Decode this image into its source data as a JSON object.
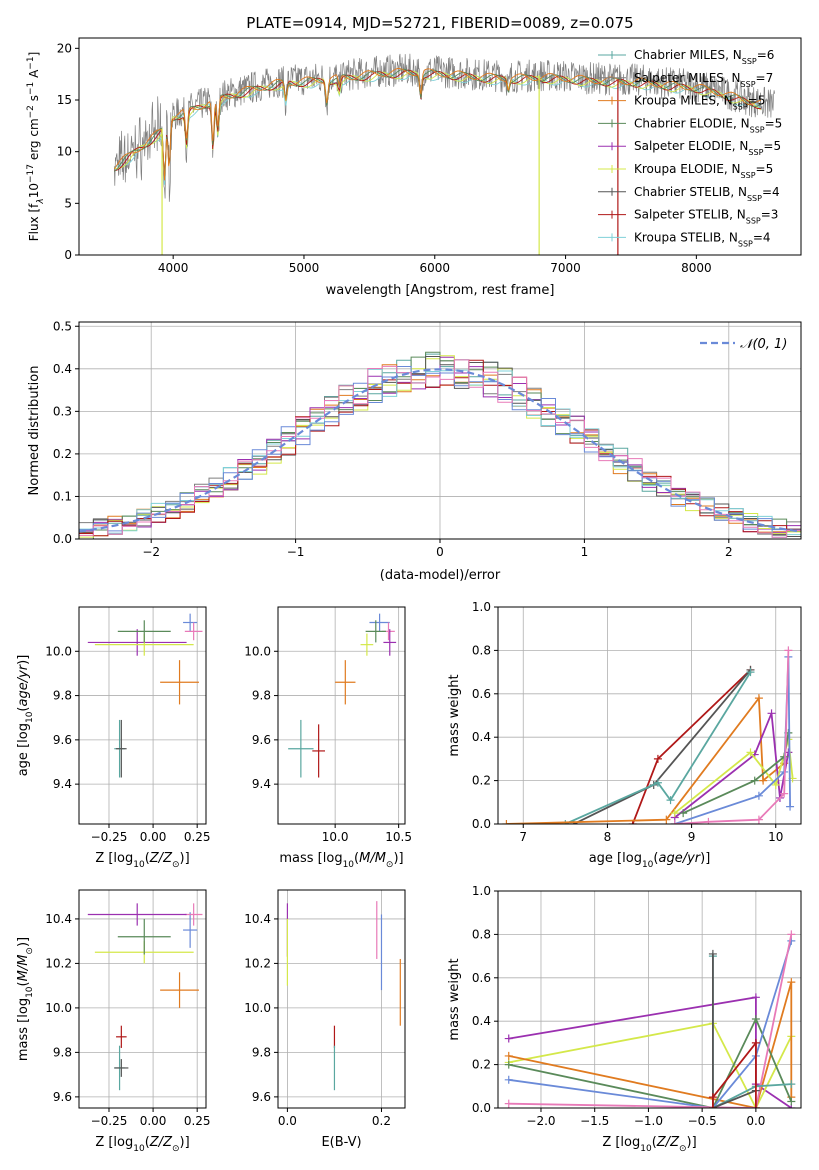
{
  "title": "PLATE=0914, MJD=52721, FIBERID=0089, z=0.075",
  "colors": {
    "chabrier_miles": "#5aa7a0",
    "salpeter_miles": "#7f7f7f",
    "kroupa_miles": "#e07b20",
    "chabrier_elodie": "#5a8a5a",
    "salpeter_elodie": "#9b30b0",
    "kroupa_elodie": "#d4e84a",
    "chabrier_stelib": "#555555",
    "salpeter_stelib": "#b01818",
    "kroupa_stelib": "#7fd0d8",
    "blue": "#6a8ad8",
    "pink": "#e87ab8",
    "grid": "#b0b0b0"
  },
  "chart_data": [
    {
      "type": "line",
      "id": "spectrum",
      "xlabel": "wavelength [Angstrom, rest frame]",
      "ylabel_parts": [
        "Flux [f",
        "λ",
        "10",
        "−17",
        " erg cm",
        "−2",
        " s",
        "−1",
        " A",
        "−1",
        "]"
      ],
      "xlim": [
        3280,
        8800
      ],
      "ylim": [
        0,
        21
      ],
      "xticks": [
        4000,
        5000,
        6000,
        7000,
        8000
      ],
      "yticks": [
        0,
        5,
        10,
        15,
        20
      ],
      "grid": false,
      "legend_position": "right",
      "legend": [
        {
          "name": "Chabrier MILES, N",
          "sub": "SSP",
          "suffix": "=6",
          "color": "chabrier_miles"
        },
        {
          "name": "Salpeter MILES, N",
          "sub": "SSP",
          "suffix": "=7",
          "color": "salpeter_miles"
        },
        {
          "name": "Kroupa MILES, N",
          "sub": "SSP",
          "suffix": "=5",
          "color": "kroupa_miles"
        },
        {
          "name": "Chabrier ELODIE, N",
          "sub": "SSP",
          "suffix": "=5",
          "color": "chabrier_elodie"
        },
        {
          "name": "Salpeter ELODIE, N",
          "sub": "SSP",
          "suffix": "=5",
          "color": "salpeter_elodie"
        },
        {
          "name": "Kroupa ELODIE, N",
          "sub": "SSP",
          "suffix": "=5",
          "color": "kroupa_elodie"
        },
        {
          "name": "Chabrier STELIB, N",
          "sub": "SSP",
          "suffix": "=4",
          "color": "chabrier_stelib"
        },
        {
          "name": "Salpeter STELIB, N",
          "sub": "SSP",
          "suffix": "=3",
          "color": "salpeter_stelib"
        },
        {
          "name": "Kroupa STELIB, N",
          "sub": "SSP",
          "suffix": "=4",
          "color": "kroupa_stelib"
        }
      ],
      "continuum": {
        "x": [
          3550,
          3700,
          3900,
          4000,
          4200,
          4400,
          4600,
          4800,
          5000,
          5200,
          5400,
          5600,
          5800,
          6000,
          6200,
          6400,
          6600,
          6800,
          7000,
          7200,
          7400,
          7600,
          7800,
          8000,
          8200,
          8400,
          8600
        ],
        "y": [
          8.5,
          10.0,
          12.0,
          13.5,
          14.5,
          15.5,
          16.2,
          16.8,
          17.0,
          17.2,
          17.5,
          17.8,
          17.9,
          17.8,
          17.6,
          17.4,
          17.3,
          17.4,
          17.3,
          17.1,
          17.0,
          16.9,
          16.6,
          16.4,
          15.8,
          15.0,
          14.5
        ]
      },
      "absorption_features": [
        {
          "x": 3934,
          "depth": 6.0
        },
        {
          "x": 3969,
          "depth": 5.0
        },
        {
          "x": 4102,
          "depth": 3.5
        },
        {
          "x": 4304,
          "depth": 5.0
        },
        {
          "x": 4341,
          "depth": 3.5
        },
        {
          "x": 4861,
          "depth": 2.0
        },
        {
          "x": 5175,
          "depth": 2.5
        },
        {
          "x": 5270,
          "depth": 1.2
        },
        {
          "x": 5893,
          "depth": 2.5
        },
        {
          "x": 6563,
          "depth": 1.2
        }
      ],
      "spikes": [
        {
          "x": 3915,
          "y": 0,
          "color": "kroupa_elodie"
        },
        {
          "x": 6798,
          "y": 0,
          "color": "kroupa_elodie"
        },
        {
          "x": 7400,
          "y": 0,
          "color": "salpeter_stelib"
        }
      ]
    },
    {
      "type": "line",
      "id": "residuals",
      "xlabel": "(data-model)/error",
      "ylabel": "Normed distribution",
      "xlim": [
        -2.5,
        2.5
      ],
      "ylim": [
        0,
        0.51
      ],
      "xticks": [
        -2,
        -1,
        0,
        1,
        2
      ],
      "yticks": [
        0.0,
        0.1,
        0.2,
        0.3,
        0.4,
        0.5
      ],
      "grid": true,
      "legend": [
        {
          "name": "𝒩(0, 1)",
          "style": "dashed",
          "color": "blue"
        }
      ],
      "bin_width": 0.1
    },
    {
      "type": "scatter",
      "id": "z_age",
      "xlabel_parts": [
        "Z [log",
        "10",
        "(",
        "Z/Z",
        "⊙",
        ")]"
      ],
      "ylabel_parts": [
        "age  [log",
        "10",
        "(",
        "age/yr",
        ")]"
      ],
      "xlim": [
        -0.42,
        0.3
      ],
      "ylim": [
        9.22,
        10.2
      ],
      "xticks": [
        -0.25,
        0.0,
        0.25
      ],
      "yticks": [
        9.4,
        9.6,
        9.8,
        10.0
      ],
      "grid": true,
      "points": [
        {
          "x": 0.21,
          "y": 10.13,
          "xerr": 0.04,
          "yerr": 0.04,
          "color": "blue"
        },
        {
          "x": 0.23,
          "y": 10.09,
          "xerr": 0.05,
          "yerr": 0.04,
          "color": "pink"
        },
        {
          "x": -0.09,
          "y": 10.04,
          "xerr": 0.28,
          "yerr": 0.06,
          "color": "salpeter_elodie"
        },
        {
          "x": -0.05,
          "y": 10.03,
          "xerr": 0.28,
          "yerr": 0.05,
          "color": "kroupa_elodie"
        },
        {
          "x": -0.05,
          "y": 10.09,
          "xerr": 0.15,
          "yerr": 0.05,
          "color": "chabrier_elodie"
        },
        {
          "x": 0.15,
          "y": 9.86,
          "xerr": 0.11,
          "yerr": 0.1,
          "color": "kroupa_miles"
        },
        {
          "x": -0.19,
          "y": 9.56,
          "xerr": 0.03,
          "yerr": 0.13,
          "color": "chabrier_miles"
        },
        {
          "x": -0.18,
          "y": 9.56,
          "xerr": 0.03,
          "yerr": 0.13,
          "color": "chabrier_stelib"
        }
      ]
    },
    {
      "type": "scatter",
      "id": "mass_age",
      "xlabel_parts": [
        "mass [log",
        "10",
        "(",
        "M/M",
        "⊙",
        ")]"
      ],
      "xlim": [
        9.55,
        10.55
      ],
      "ylim": [
        9.22,
        10.2
      ],
      "xticks": [
        10.0,
        10.5
      ],
      "yticks": [
        9.4,
        9.6,
        9.8,
        10.0
      ],
      "ytick_labels": [
        "9.4",
        "9.6",
        "9.8",
        "10.0"
      ],
      "grid": true,
      "points": [
        {
          "x": 10.35,
          "y": 10.13,
          "xerr": 0.08,
          "yerr": 0.04,
          "color": "blue"
        },
        {
          "x": 10.42,
          "y": 10.09,
          "xerr": 0.05,
          "yerr": 0.04,
          "color": "pink"
        },
        {
          "x": 10.43,
          "y": 10.04,
          "xerr": 0.05,
          "yerr": 0.06,
          "color": "salpeter_elodie"
        },
        {
          "x": 10.25,
          "y": 10.03,
          "xerr": 0.05,
          "yerr": 0.05,
          "color": "kroupa_elodie"
        },
        {
          "x": 10.32,
          "y": 10.09,
          "xerr": 0.08,
          "yerr": 0.05,
          "color": "chabrier_elodie"
        },
        {
          "x": 10.08,
          "y": 9.86,
          "xerr": 0.08,
          "yerr": 0.1,
          "color": "kroupa_miles"
        },
        {
          "x": 9.73,
          "y": 9.56,
          "xerr": 0.1,
          "yerr": 0.13,
          "color": "chabrier_miles"
        },
        {
          "x": 9.87,
          "y": 9.55,
          "xerr": 0.05,
          "yerr": 0.12,
          "color": "salpeter_stelib"
        }
      ]
    },
    {
      "type": "line",
      "id": "age_weight",
      "xlabel_parts": [
        "age  [log",
        "10",
        "(",
        "age/yr",
        ")]"
      ],
      "ylabel": "mass weight",
      "xlim": [
        6.7,
        10.3
      ],
      "ylim": [
        0,
        1.0
      ],
      "xticks": [
        7,
        8,
        9,
        10
      ],
      "yticks": [
        0.0,
        0.2,
        0.4,
        0.6,
        0.8,
        1.0
      ],
      "grid": true,
      "series": [
        {
          "color": "salpeter_stelib",
          "x": [
            8.3,
            8.6,
            9.7
          ],
          "y": [
            0.0,
            0.3,
            0.71
          ]
        },
        {
          "color": "chabrier_stelib",
          "x": [
            7.6,
            8.55,
            9.7
          ],
          "y": [
            0.0,
            0.18,
            0.71
          ]
        },
        {
          "color": "chabrier_miles",
          "x": [
            7.5,
            8.6,
            8.75,
            9.7
          ],
          "y": [
            0.0,
            0.19,
            0.11,
            0.7
          ]
        },
        {
          "color": "kroupa_miles",
          "x": [
            6.8,
            8.7,
            9.8,
            9.85,
            10.1
          ],
          "y": [
            0.0,
            0.02,
            0.58,
            0.2,
            0.28
          ]
        },
        {
          "color": "salpeter_elodie",
          "x": [
            8.8,
            9.75,
            9.95,
            10.05,
            10.15
          ],
          "y": [
            0.03,
            0.32,
            0.51,
            0.12,
            0.33
          ]
        },
        {
          "color": "kroupa_elodie",
          "x": [
            8.8,
            9.7,
            10.0,
            10.15,
            10.2
          ],
          "y": [
            0.05,
            0.33,
            0.18,
            0.39,
            0.21
          ]
        },
        {
          "color": "chabrier_elodie",
          "x": [
            8.9,
            9.75,
            10.1,
            10.15
          ],
          "y": [
            0.05,
            0.2,
            0.31,
            0.42
          ]
        },
        {
          "color": "blue",
          "x": [
            8.8,
            9.8,
            10.1,
            10.15,
            10.17
          ],
          "y": [
            0.0,
            0.13,
            0.24,
            0.77,
            0.08
          ]
        },
        {
          "color": "pink",
          "x": [
            8.8,
            9.2,
            9.8,
            10.1,
            10.15
          ],
          "y": [
            0.0,
            0.01,
            0.02,
            0.14,
            0.8
          ]
        }
      ]
    },
    {
      "type": "scatter",
      "id": "z_mass",
      "xlabel_parts": [
        "Z [log",
        "10",
        "(",
        "Z/Z",
        "⊙",
        ")]"
      ],
      "ylabel_parts": [
        "mass [log",
        "10",
        "(",
        "M/M",
        "⊙",
        ")]"
      ],
      "xlim": [
        -0.42,
        0.3
      ],
      "ylim": [
        9.55,
        10.53
      ],
      "xticks": [
        -0.25,
        0.0,
        0.25
      ],
      "yticks": [
        9.6,
        9.8,
        10.0,
        10.2,
        10.4
      ],
      "grid": true,
      "points": [
        {
          "x": 0.21,
          "y": 10.35,
          "xerr": 0.04,
          "yerr": 0.08,
          "color": "blue"
        },
        {
          "x": 0.23,
          "y": 10.42,
          "xerr": 0.05,
          "yerr": 0.05,
          "color": "pink"
        },
        {
          "x": -0.09,
          "y": 10.42,
          "xerr": 0.28,
          "yerr": 0.05,
          "color": "salpeter_elodie"
        },
        {
          "x": -0.05,
          "y": 10.25,
          "xerr": 0.28,
          "yerr": 0.05,
          "color": "kroupa_elodie"
        },
        {
          "x": -0.05,
          "y": 10.32,
          "xerr": 0.15,
          "yerr": 0.08,
          "color": "chabrier_elodie"
        },
        {
          "x": 0.15,
          "y": 10.08,
          "xerr": 0.11,
          "yerr": 0.08,
          "color": "kroupa_miles"
        },
        {
          "x": -0.19,
          "y": 9.73,
          "xerr": 0.03,
          "yerr": 0.1,
          "color": "chabrier_miles"
        },
        {
          "x": -0.18,
          "y": 9.87,
          "xerr": 0.03,
          "yerr": 0.05,
          "color": "salpeter_stelib"
        },
        {
          "x": -0.18,
          "y": 9.73,
          "xerr": 0.04,
          "yerr": 0.04,
          "color": "chabrier_stelib"
        }
      ]
    },
    {
      "type": "scatter",
      "id": "ebv_mass",
      "xlabel": "E(B-V)",
      "xlim": [
        -0.02,
        0.25
      ],
      "ylim": [
        9.55,
        10.53
      ],
      "xticks": [
        0.0,
        0.2
      ],
      "yticks": [
        9.6,
        9.8,
        10.0,
        10.2,
        10.4
      ],
      "ytick_labels": [
        "9.6",
        "9.8",
        "10.0",
        "10.2",
        "10.4"
      ],
      "grid": true,
      "points": [
        {
          "x": 0.0,
          "y": 10.35,
          "yerr": 0.12,
          "color": "salpeter_elodie"
        },
        {
          "x": 0.0,
          "y": 10.25,
          "yerr": 0.15,
          "color": "kroupa_elodie"
        },
        {
          "x": 0.19,
          "y": 10.35,
          "yerr": 0.13,
          "color": "pink"
        },
        {
          "x": 0.2,
          "y": 10.25,
          "yerr": 0.17,
          "color": "blue"
        },
        {
          "x": 0.24,
          "y": 10.07,
          "yerr": 0.15,
          "color": "kroupa_miles"
        },
        {
          "x": 0.1,
          "y": 9.87,
          "yerr": 0.05,
          "color": "salpeter_stelib"
        },
        {
          "x": 0.1,
          "y": 9.73,
          "yerr": 0.1,
          "color": "chabrier_miles"
        }
      ]
    },
    {
      "type": "line",
      "id": "z_weight",
      "xlabel_parts": [
        "Z [log",
        "10",
        "(",
        "Z/Z",
        "⊙",
        ")]"
      ],
      "ylabel": "mass weight",
      "xlim": [
        -2.4,
        0.42
      ],
      "ylim": [
        0,
        1.0
      ],
      "xticks": [
        -2.0,
        -1.5,
        -1.0,
        -0.5,
        0.0
      ],
      "xtick_labels": [
        "−2.0",
        "−1.5",
        "−1.0",
        "−0.5",
        "0.0"
      ],
      "yticks": [
        0.0,
        0.2,
        0.4,
        0.6,
        0.8,
        1.0
      ],
      "grid": true,
      "series": [
        {
          "color": "salpeter_elodie",
          "x": [
            -2.3,
            0.0,
            0.0,
            0.33
          ],
          "y": [
            0.32,
            0.51,
            0.11,
            0.0
          ]
        },
        {
          "color": "kroupa_elodie",
          "x": [
            -2.3,
            -0.4,
            0.0,
            0.33
          ],
          "y": [
            0.21,
            0.39,
            0.0,
            0.33
          ]
        },
        {
          "color": "kroupa_miles",
          "x": [
            -2.3,
            0.0,
            0.33,
            0.33
          ],
          "y": [
            0.24,
            0.0,
            0.58,
            0.05
          ]
        },
        {
          "color": "chabrier_elodie",
          "x": [
            -2.3,
            -0.4,
            0.0,
            0.33
          ],
          "y": [
            0.2,
            0.0,
            0.41,
            0.03
          ]
        },
        {
          "color": "blue",
          "x": [
            -2.3,
            -0.4,
            0.0,
            0.33
          ],
          "y": [
            0.13,
            0.0,
            0.24,
            0.77
          ]
        },
        {
          "color": "pink",
          "x": [
            -2.3,
            0.0,
            0.33
          ],
          "y": [
            0.02,
            0.0,
            0.8
          ]
        },
        {
          "color": "chabrier_miles",
          "x": [
            -0.4,
            -0.4,
            0.0,
            0.33
          ],
          "y": [
            0.7,
            0.0,
            0.1,
            0.11
          ]
        },
        {
          "color": "chabrier_stelib",
          "x": [
            -0.4,
            -0.4,
            0.0
          ],
          "y": [
            0.71,
            0.0,
            0.08
          ]
        },
        {
          "color": "salpeter_stelib",
          "x": [
            -0.4,
            -0.4,
            0.0,
            0.0
          ],
          "y": [
            0.0,
            0.05,
            0.3,
            0.0
          ]
        }
      ]
    }
  ]
}
